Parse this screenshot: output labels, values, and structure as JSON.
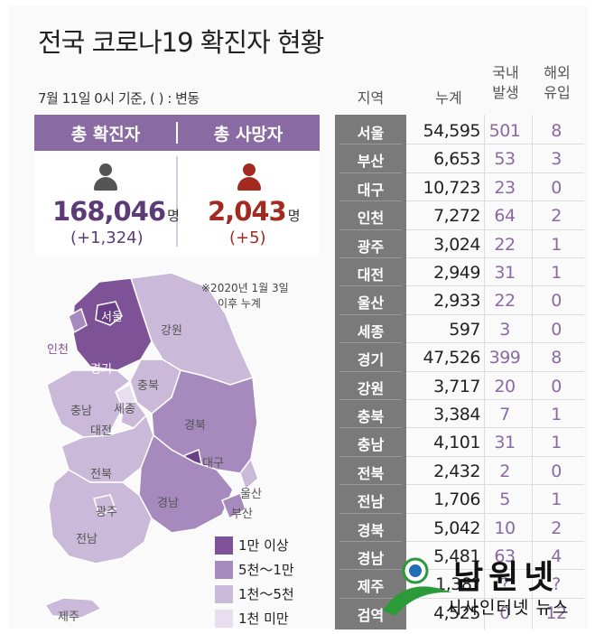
{
  "title": "전국 코로나19 확진자 현황",
  "basis_note": "7월 11일 0시 기준, ( ) : 변동",
  "summary": {
    "confirmed_label": "총 확진자",
    "confirmed_value": "168,046",
    "confirmed_unit": "명",
    "confirmed_delta": "(+1,324)",
    "deaths_label": "총 사망자",
    "deaths_value": "2,043",
    "deaths_unit": "명",
    "deaths_delta": "(+5)"
  },
  "map": {
    "note_line1": "※2020년 1월 3일",
    "note_line2": "이후 누계",
    "labels": {
      "seoul": "서울",
      "incheon": "인천",
      "gyeonggi": "경기",
      "gangwon": "강원",
      "chungbuk": "충북",
      "sejong": "세종",
      "chungnam": "충남",
      "daejeon": "대전",
      "gyeongbuk": "경북",
      "daegu": "대구",
      "jeonbuk": "전북",
      "gwangju": "광주",
      "gyeongnam": "경남",
      "ulsan": "울산",
      "busan": "부산",
      "jeonnam": "전남",
      "jeju": "제주"
    }
  },
  "legend": [
    {
      "label": "1만 이상",
      "color": "#7e5296"
    },
    {
      "label": "5천～1만",
      "color": "#a689bd"
    },
    {
      "label": "1천～5천",
      "color": "#cbb9d9"
    },
    {
      "label": "1천 미만",
      "color": "#e7def0"
    }
  ],
  "colors": {
    "accent": "#8a6aa3",
    "deaths": "#a32a1e",
    "person_gray": "#555555",
    "band": "#7a7a7a"
  },
  "table_headers": {
    "region": "지역",
    "total": "누계",
    "domestic_line1": "국내",
    "domestic_line2": "발생",
    "imported_line1": "해외",
    "imported_line2": "유입"
  },
  "chart_data": {
    "type": "table",
    "title": "전국 코로나19 확진자 현황",
    "columns": [
      "지역",
      "누계",
      "국내발생",
      "해외유입"
    ],
    "rows": [
      {
        "region": "서울",
        "total": "54,595",
        "domestic": "501",
        "imported": "8"
      },
      {
        "region": "부산",
        "total": "6,653",
        "domestic": "53",
        "imported": "3"
      },
      {
        "region": "대구",
        "total": "10,723",
        "domestic": "23",
        "imported": "0"
      },
      {
        "region": "인천",
        "total": "7,272",
        "domestic": "64",
        "imported": "2"
      },
      {
        "region": "광주",
        "total": "3,024",
        "domestic": "22",
        "imported": "1"
      },
      {
        "region": "대전",
        "total": "2,949",
        "domestic": "31",
        "imported": "1"
      },
      {
        "region": "울산",
        "total": "2,933",
        "domestic": "22",
        "imported": "0"
      },
      {
        "region": "세종",
        "total": "597",
        "domestic": "3",
        "imported": "0"
      },
      {
        "region": "경기",
        "total": "47,526",
        "domestic": "399",
        "imported": "8"
      },
      {
        "region": "강원",
        "total": "3,717",
        "domestic": "20",
        "imported": "0"
      },
      {
        "region": "충북",
        "total": "3,384",
        "domestic": "7",
        "imported": "1"
      },
      {
        "region": "충남",
        "total": "4,101",
        "domestic": "31",
        "imported": "1"
      },
      {
        "region": "전북",
        "total": "2,432",
        "domestic": "2",
        "imported": "0"
      },
      {
        "region": "전남",
        "total": "1,706",
        "domestic": "5",
        "imported": "1"
      },
      {
        "region": "경북",
        "total": "5,042",
        "domestic": "10",
        "imported": "2"
      },
      {
        "region": "경남",
        "total": "5,481",
        "domestic": "63",
        "imported": "4"
      },
      {
        "region": "제주",
        "total": "1,38?",
        "domestic": "?",
        "imported": "?"
      },
      {
        "region": "검역",
        "total": "4,525",
        "domestic": "0",
        "imported": "12"
      }
    ]
  },
  "watermark": {
    "name": "남원넷",
    "sub": "시사인터넷 뉴스"
  }
}
